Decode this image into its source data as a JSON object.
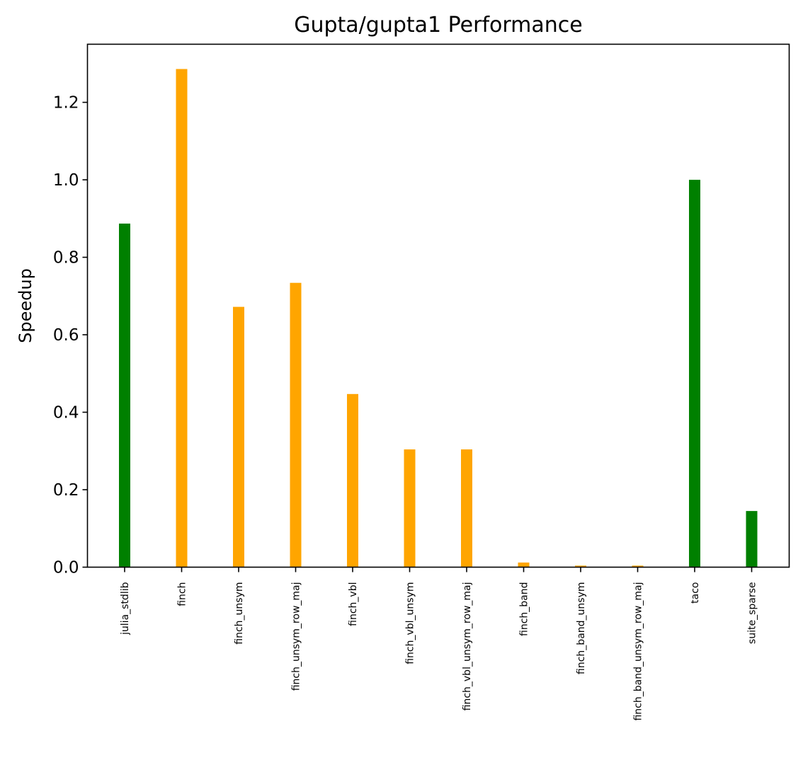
{
  "chart_data": {
    "type": "bar",
    "title": "Gupta/gupta1 Performance",
    "xlabel": "",
    "ylabel": "Speedup",
    "ylim": [
      0,
      1.35
    ],
    "yticks": [
      "0.0",
      "0.2",
      "0.4",
      "0.6",
      "0.8",
      "1.0",
      "1.2"
    ],
    "categories": [
      "julia_stdlib",
      "finch",
      "finch_unsym",
      "finch_unsym_row_maj",
      "finch_vbl",
      "finch_vbl_unsym",
      "finch_vbl_unsym_row_maj",
      "finch_band",
      "finch_band_unsym",
      "finch_band_unsym_row_maj",
      "taco",
      "suite_sparse"
    ],
    "values": [
      0.887,
      1.286,
      0.672,
      0.734,
      0.447,
      0.304,
      0.304,
      0.012,
      0.004,
      0.004,
      1.0,
      0.145
    ],
    "colors": [
      "#008000",
      "#FFA500",
      "#FFA500",
      "#FFA500",
      "#FFA500",
      "#FFA500",
      "#FFA500",
      "#FFA500",
      "#FFA500",
      "#FFA500",
      "#008000",
      "#008000"
    ],
    "grid": false,
    "legend": "none"
  }
}
